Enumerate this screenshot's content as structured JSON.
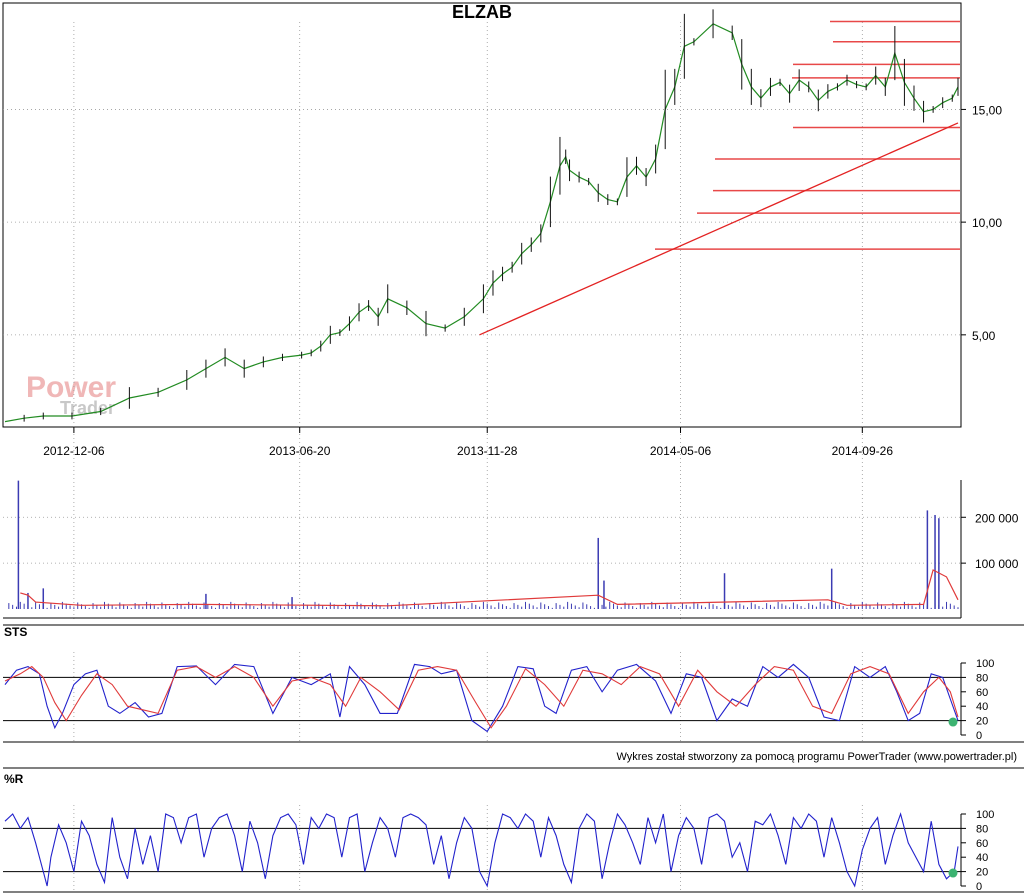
{
  "chart_data": [
    {
      "type": "line",
      "title": "ELZAB",
      "x_tick_labels": [
        "2012-12-06",
        "2013-06-20",
        "2013-11-28",
        "2014-05-06",
        "2014-09-26"
      ],
      "y_tick_labels": [
        "5,00",
        "10,00",
        "15,00"
      ],
      "ylim": [
        1.0,
        19.5
      ],
      "grid": true,
      "series": [
        {
          "x": [
            0,
            10,
            20,
            35,
            50,
            65,
            80,
            95,
            105,
            115,
            125,
            135,
            145,
            155,
            160,
            165,
            170,
            175,
            180,
            185,
            190,
            195,
            200,
            210,
            220,
            230,
            240,
            250,
            255,
            260,
            265,
            270,
            275,
            280,
            285,
            290,
            293,
            295,
            300,
            305,
            310,
            315,
            320,
            325,
            330,
            335,
            340,
            345,
            350,
            355,
            360,
            370,
            380,
            385,
            390,
            395,
            400,
            405,
            410,
            415,
            420,
            425,
            430,
            435,
            440,
            445,
            450,
            455,
            460,
            465,
            470,
            475,
            480,
            485,
            490,
            495,
            498
          ],
          "values": [
            1.15,
            1.3,
            1.4,
            1.4,
            1.6,
            2.2,
            2.45,
            3.0,
            3.5,
            4.0,
            3.5,
            3.8,
            4.0,
            4.1,
            4.2,
            4.5,
            5.0,
            5.1,
            5.5,
            6.0,
            6.3,
            5.8,
            6.6,
            6.2,
            5.5,
            5.3,
            5.8,
            6.6,
            7.3,
            7.7,
            8.0,
            8.6,
            9.0,
            9.5,
            10.9,
            12.5,
            12.9,
            12.3,
            12.0,
            11.8,
            11.3,
            11.0,
            10.9,
            12.0,
            12.5,
            12.0,
            12.8,
            15.0,
            16.0,
            17.8,
            18.0,
            18.8,
            18.4,
            17.0,
            16.0,
            15.5,
            16.0,
            16.2,
            15.7,
            16.3,
            16.0,
            15.4,
            15.8,
            16.0,
            16.3,
            16.1,
            16.0,
            16.5,
            16.0,
            17.5,
            16.2,
            15.5,
            14.9,
            15.0,
            15.3,
            15.5,
            16.0
          ]
        }
      ],
      "x_index_labels": {
        "2012-12-06": 36,
        "2013-06-20": 154,
        "2013-11-28": 252,
        "2014-05-06": 353,
        "2014-09-26": 448
      },
      "resistance_levels": [
        18.9,
        18.0,
        17.0,
        16.4,
        14.2,
        12.8,
        11.4,
        10.4,
        8.8
      ],
      "trendline": {
        "from": [
          248,
          5.0
        ],
        "to": [
          498,
          14.4
        ]
      },
      "colors": {
        "price": "#228b22",
        "levels": "#e84848",
        "trend": "#e32222",
        "grid": "#888888"
      }
    },
    {
      "type": "bar",
      "y_tick_labels": [
        "100 000",
        "200 000"
      ],
      "ylim": [
        0,
        290000
      ],
      "spikes": [
        {
          "x": 7,
          "value": 280000
        },
        {
          "x": 12,
          "value": 35000
        },
        {
          "x": 20,
          "value": 45000
        },
        {
          "x": 105,
          "value": 33000
        },
        {
          "x": 150,
          "value": 26000
        },
        {
          "x": 310,
          "value": 155000
        },
        {
          "x": 313,
          "value": 62000
        },
        {
          "x": 376,
          "value": 78000
        },
        {
          "x": 432,
          "value": 88000
        },
        {
          "x": 482,
          "value": 215000
        },
        {
          "x": 486,
          "value": 205000
        },
        {
          "x": 488,
          "value": 198000
        }
      ],
      "mean_series": [
        {
          "x": 8,
          "value": 35000
        },
        {
          "x": 12,
          "value": 30000
        },
        {
          "x": 16,
          "value": 15000
        },
        {
          "x": 40,
          "value": 8000
        },
        {
          "x": 100,
          "value": 10000
        },
        {
          "x": 200,
          "value": 7000
        },
        {
          "x": 310,
          "value": 30000
        },
        {
          "x": 320,
          "value": 10000
        },
        {
          "x": 430,
          "value": 20000
        },
        {
          "x": 440,
          "value": 8000
        },
        {
          "x": 480,
          "value": 10000
        },
        {
          "x": 485,
          "value": 85000
        },
        {
          "x": 492,
          "value": 70000
        },
        {
          "x": 498,
          "value": 20000
        }
      ],
      "colors": {
        "bars": "#3b3bb3",
        "mean": "#e03a3a"
      }
    },
    {
      "type": "line",
      "panel_label": "STS",
      "y_tick_labels": [
        "0",
        "20",
        "40",
        "60",
        "80",
        "100"
      ],
      "ylim": [
        0,
        100
      ],
      "reference_lines": [
        20,
        80
      ],
      "series": [
        {
          "x": [
            0,
            6,
            12,
            18,
            22,
            26,
            30,
            36,
            42,
            48,
            54,
            60,
            68,
            75,
            82,
            90,
            100,
            110,
            120,
            130,
            140,
            150,
            160,
            170,
            175,
            180,
            188,
            196,
            205,
            214,
            222,
            228,
            236,
            244,
            252,
            260,
            268,
            276,
            282,
            288,
            296,
            304,
            312,
            320,
            330,
            340,
            348,
            356,
            364,
            372,
            380,
            388,
            396,
            404,
            412,
            420,
            428,
            436,
            444,
            452,
            460,
            466,
            472,
            478,
            484,
            490,
            494,
            498
          ],
          "values": [
            70,
            90,
            95,
            85,
            40,
            10,
            30,
            70,
            85,
            90,
            40,
            30,
            45,
            25,
            30,
            95,
            96,
            70,
            98,
            95,
            30,
            80,
            70,
            85,
            25,
            95,
            70,
            30,
            30,
            98,
            95,
            85,
            90,
            20,
            5,
            40,
            95,
            92,
            40,
            30,
            90,
            95,
            60,
            90,
            98,
            75,
            30,
            85,
            80,
            20,
            50,
            40,
            95,
            80,
            98,
            80,
            25,
            20,
            95,
            80,
            95,
            60,
            20,
            30,
            85,
            80,
            50,
            20
          ]
        },
        {
          "x": [
            0,
            8,
            14,
            20,
            26,
            32,
            40,
            48,
            56,
            64,
            72,
            80,
            90,
            100,
            110,
            120,
            130,
            140,
            150,
            160,
            170,
            178,
            186,
            196,
            206,
            216,
            226,
            236,
            246,
            254,
            262,
            272,
            282,
            292,
            302,
            312,
            322,
            332,
            342,
            352,
            362,
            372,
            382,
            392,
            402,
            412,
            422,
            432,
            442,
            452,
            462,
            472,
            480,
            488,
            494,
            498
          ],
          "values": [
            75,
            85,
            95,
            80,
            45,
            20,
            55,
            85,
            70,
            40,
            35,
            30,
            90,
            95,
            80,
            95,
            80,
            40,
            75,
            80,
            70,
            40,
            80,
            60,
            35,
            90,
            95,
            90,
            45,
            10,
            40,
            92,
            70,
            40,
            90,
            85,
            70,
            95,
            85,
            40,
            90,
            60,
            40,
            70,
            95,
            90,
            40,
            30,
            85,
            95,
            85,
            30,
            60,
            80,
            60,
            25
          ]
        }
      ],
      "marker": {
        "x": 498,
        "value": 18
      },
      "colors": {
        "line1": "#2222cc",
        "line2": "#e03a3a",
        "marker": "#3cb371"
      }
    },
    {
      "type": "line",
      "panel_label": "%R",
      "y_tick_labels": [
        "0",
        "20",
        "40",
        "60",
        "80",
        "100"
      ],
      "ylim": [
        0,
        100
      ],
      "reference_lines": [
        20,
        80
      ],
      "series": [
        {
          "x": [
            0,
            4,
            8,
            12,
            16,
            20,
            22,
            24,
            28,
            32,
            36,
            40,
            44,
            48,
            52,
            56,
            60,
            64,
            68,
            72,
            76,
            80,
            84,
            88,
            92,
            96,
            100,
            104,
            108,
            112,
            116,
            120,
            124,
            128,
            132,
            136,
            140,
            144,
            148,
            152,
            156,
            160,
            164,
            168,
            172,
            176,
            180,
            184,
            188,
            192,
            196,
            200,
            204,
            208,
            212,
            216,
            220,
            224,
            228,
            232,
            236,
            240,
            244,
            248,
            252,
            256,
            260,
            264,
            268,
            272,
            276,
            280,
            284,
            288,
            292,
            296,
            300,
            304,
            308,
            312,
            316,
            320,
            324,
            328,
            332,
            336,
            340,
            344,
            348,
            352,
            356,
            360,
            364,
            368,
            372,
            376,
            380,
            384,
            388,
            392,
            396,
            400,
            404,
            408,
            412,
            416,
            420,
            424,
            428,
            432,
            436,
            440,
            444,
            448,
            452,
            456,
            460,
            464,
            468,
            472,
            476,
            480,
            484,
            488,
            492,
            496,
            498
          ],
          "values": [
            90,
            100,
            80,
            95,
            60,
            20,
            0,
            40,
            85,
            60,
            20,
            90,
            70,
            30,
            5,
            95,
            40,
            10,
            80,
            30,
            70,
            20,
            100,
            95,
            60,
            95,
            100,
            40,
            80,
            95,
            100,
            70,
            20,
            90,
            60,
            10,
            70,
            95,
            100,
            85,
            30,
            95,
            80,
            100,
            95,
            40,
            95,
            100,
            20,
            60,
            95,
            80,
            40,
            95,
            100,
            95,
            85,
            30,
            70,
            10,
            60,
            95,
            80,
            20,
            0,
            60,
            100,
            95,
            80,
            100,
            90,
            40,
            95,
            70,
            30,
            5,
            80,
            100,
            90,
            10,
            60,
            100,
            85,
            60,
            30,
            95,
            60,
            100,
            20,
            70,
            95,
            80,
            30,
            95,
            100,
            90,
            40,
            60,
            20,
            90,
            85,
            100,
            70,
            30,
            95,
            80,
            100,
            90,
            40,
            95,
            60,
            20,
            0,
            50,
            80,
            95,
            30,
            70,
            100,
            60,
            40,
            20,
            90,
            30,
            10,
            20,
            55
          ]
        }
      ],
      "marker": {
        "x": 498,
        "value": 18
      },
      "colors": {
        "line": "#2222cc",
        "marker": "#3cb371"
      }
    }
  ],
  "credit_text": "Wykres został stworzony za pomocą programu PowerTrader (www.powertrader.pl)",
  "watermark": {
    "line1": "Power",
    "line2": "Trader"
  }
}
